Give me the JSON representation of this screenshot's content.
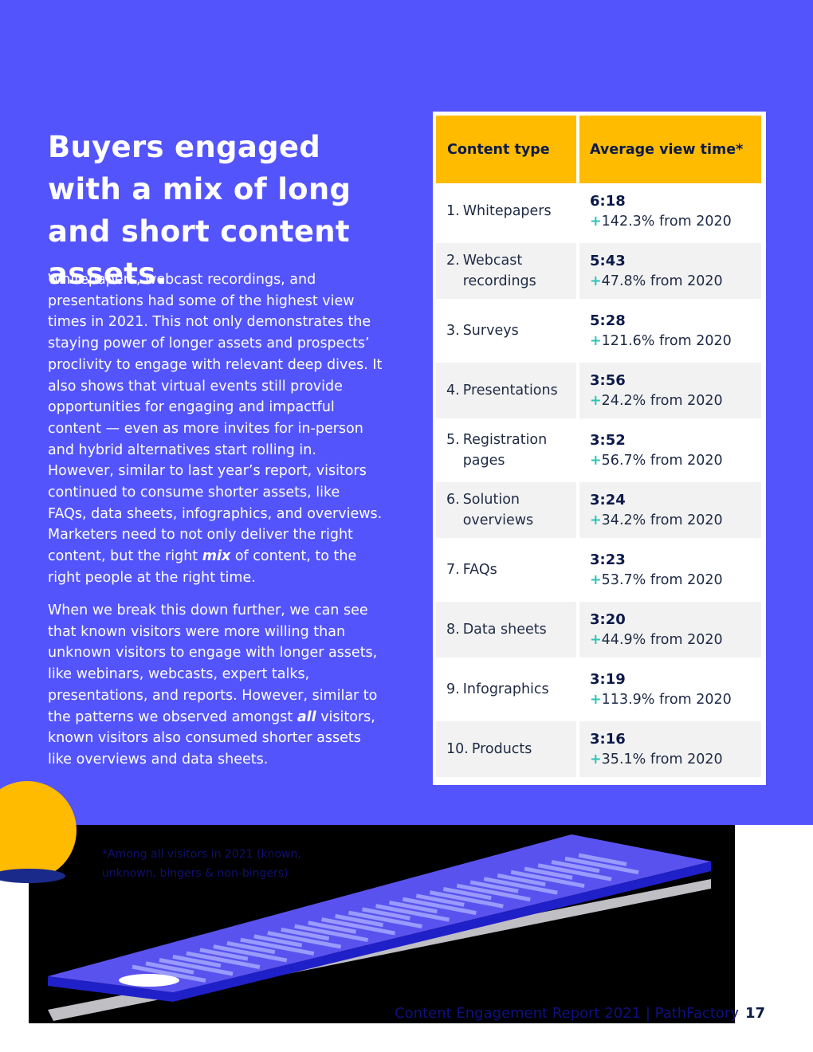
{
  "headline": "Buyers engaged with a mix of long and short content assets.",
  "paragraph1": {
    "before": "Whitepapers, webcast recordings, and presentations had some of the highest view times in 2021. This not only demonstrates the staying power of longer assets and prospects’ proclivity to engage with relevant deep dives. It also shows that virtual events still provide opportunities for engaging and impactful content — even as more invites for in-person and hybrid alternatives start rolling in. However, similar to last year’s report, visitors continued to consume shorter assets, like FAQs, data sheets, infographics, and overviews. Marketers need to not only deliver the right content, but the right ",
    "emphasis": "mix",
    "after": " of content, to the right people at the right time."
  },
  "paragraph2": {
    "before": "When we break this down further, we can see that known visitors were more willing than unknown visitors to engage with longer assets, like webinars, webcasts, expert talks, presentations, and reports. However, similar to the patterns we observed amongst ",
    "emphasis": "all",
    "after": " visitors, known visitors also consumed shorter assets like overviews and data sheets."
  },
  "table": {
    "header_type": "Content type",
    "header_time": "Average view time*",
    "rows": [
      {
        "rank": "1.",
        "label": "Whitepapers",
        "time": "6:18",
        "plus": "+",
        "change": "142.3% from 2020"
      },
      {
        "rank": "2.",
        "label": "Webcast recordings",
        "time": "5:43",
        "plus": "+",
        "change": "47.8% from 2020"
      },
      {
        "rank": "3.",
        "label": "Surveys",
        "time": "5:28",
        "plus": "+",
        "change": "121.6% from 2020"
      },
      {
        "rank": "4.",
        "label": "Presentations",
        "time": "3:56",
        "plus": "+",
        "change": "24.2% from 2020"
      },
      {
        "rank": "5.",
        "label": "Registration pages",
        "time": "3:52",
        "plus": "+",
        "change": "56.7% from 2020"
      },
      {
        "rank": "6.",
        "label": "Solution overviews",
        "time": "3:24",
        "plus": "+",
        "change": "34.2% from 2020"
      },
      {
        "rank": "7.",
        "label": "FAQs",
        "time": "3:23",
        "plus": "+",
        "change": "53.7% from 2020"
      },
      {
        "rank": "8.",
        "label": "Data sheets",
        "time": "3:20",
        "plus": "+",
        "change": "44.9% from 2020"
      },
      {
        "rank": "9.",
        "label": "Infographics",
        "time": "3:19",
        "plus": "+",
        "change": "113.9% from 2020"
      },
      {
        "rank": "10.",
        "label": "Products",
        "time": "3:16",
        "plus": "+",
        "change": "35.1% from 2020"
      }
    ]
  },
  "footnote": "*Among all visitors in 2021 (known, unknown, bingers & non-bingers)",
  "footer": {
    "report": "Content Engagement Report 2021  |  PathFactory",
    "page_number": "17"
  },
  "colors": {
    "brand_blue": "#5454fc",
    "accent_yellow": "#ffbb00",
    "positive_teal": "#2ec4b6"
  }
}
